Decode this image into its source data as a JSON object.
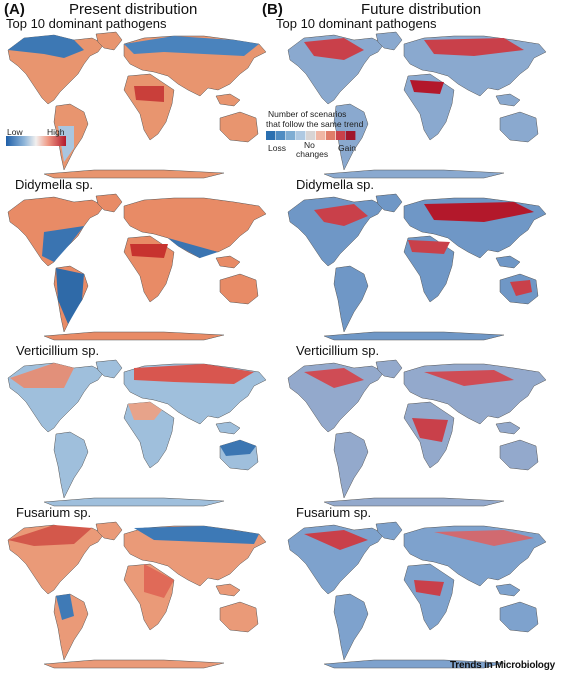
{
  "header": {
    "left_letter": "(A)",
    "left_title": "Present distribution",
    "right_letter": "(B)",
    "right_title": "Future distribution"
  },
  "rows": [
    {
      "label": "Top 10 dominant pathogens"
    },
    {
      "label": "Didymella sp."
    },
    {
      "label": "Verticillium sp."
    },
    {
      "label": "Fusarium sp."
    }
  ],
  "legend_present": {
    "low": "Low",
    "high": "High",
    "colors": [
      "#1f5fa8",
      "#5f96c8",
      "#b9d3e8",
      "#f2c4b4",
      "#e06a58",
      "#b3182b"
    ]
  },
  "legend_future": {
    "title_line1": "Number of scenarios",
    "title_line2": "that follow the same trend",
    "loss": "Loss",
    "no_changes_line1": "No",
    "no_changes_line2": "changes",
    "gain": "Gain",
    "colors": [
      "#2a6fb0",
      "#4f8cc2",
      "#7fadd3",
      "#afc9e2",
      "#d8d4d4",
      "#f0b6a4",
      "#e07d6a",
      "#c9404a",
      "#a0152b"
    ]
  },
  "footer": {
    "journal": "Trends in Microbiology"
  }
}
